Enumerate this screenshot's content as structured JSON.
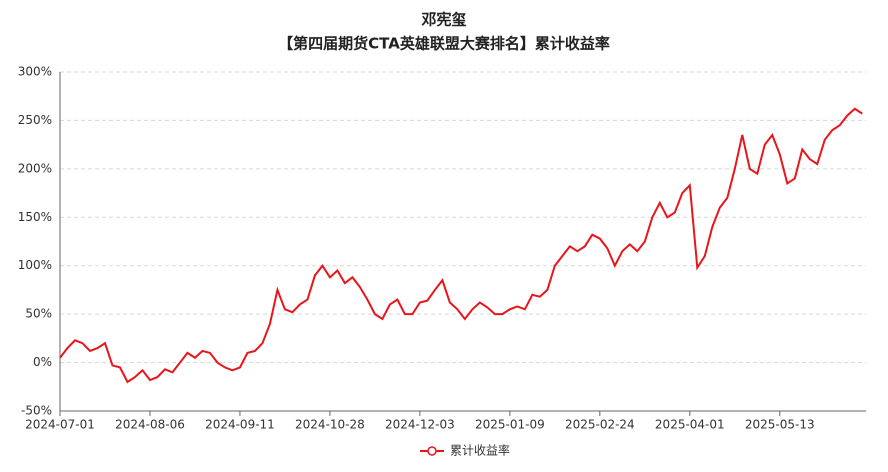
{
  "chart_data": {
    "type": "line",
    "title": "邓宪玺",
    "subtitle": "【第四届期货CTA英雄联盟大赛排名】累计收益率",
    "categories": [
      "2024-07-01",
      null,
      null,
      null,
      null,
      null,
      null,
      null,
      null,
      null,
      null,
      null,
      "2024-08-06",
      null,
      null,
      null,
      null,
      null,
      null,
      null,
      null,
      null,
      null,
      null,
      "2024-09-11",
      null,
      null,
      null,
      null,
      null,
      null,
      null,
      null,
      null,
      null,
      null,
      "2024-10-28",
      null,
      null,
      null,
      null,
      null,
      null,
      null,
      null,
      null,
      null,
      null,
      "2024-12-03",
      null,
      null,
      null,
      null,
      null,
      null,
      null,
      null,
      null,
      null,
      null,
      "2025-01-09",
      null,
      null,
      null,
      null,
      null,
      null,
      null,
      null,
      null,
      null,
      null,
      "2025-02-24",
      null,
      null,
      null,
      null,
      null,
      null,
      null,
      null,
      null,
      null,
      null,
      "2025-04-01",
      null,
      null,
      null,
      null,
      null,
      null,
      null,
      null,
      null,
      null,
      null,
      "2025-05-13",
      null,
      null,
      null,
      null,
      null,
      null,
      null,
      null,
      null,
      null,
      null
    ],
    "series": [
      {
        "name": "累计收益率",
        "color": "#e8151b",
        "values": [
          5,
          15,
          23,
          20,
          12,
          15,
          20,
          -3,
          -5,
          -20,
          -15,
          -8,
          -18,
          -15,
          -7,
          -10,
          0,
          10,
          5,
          12,
          10,
          0,
          -5,
          -8,
          -5,
          10,
          12,
          20,
          40,
          75,
          55,
          52,
          60,
          65,
          90,
          100,
          88,
          95,
          82,
          88,
          78,
          65,
          50,
          45,
          60,
          65,
          50,
          50,
          62,
          64,
          75,
          85,
          62,
          55,
          45,
          55,
          62,
          57,
          50,
          50,
          55,
          58,
          55,
          70,
          68,
          75,
          100,
          110,
          120,
          115,
          120,
          132,
          128,
          118,
          100,
          115,
          122,
          115,
          125,
          150,
          165,
          150,
          155,
          175,
          183,
          98,
          110,
          140,
          160,
          170,
          200,
          235,
          200,
          195,
          225,
          235,
          215,
          185,
          190,
          220,
          210,
          205,
          230,
          240,
          245,
          255,
          262,
          257
        ]
      }
    ],
    "ylim": [
      -50,
      300
    ],
    "yticks": [
      {
        "value": -50,
        "label": "-50%"
      },
      {
        "value": 0,
        "label": "0%"
      },
      {
        "value": 50,
        "label": "50%"
      },
      {
        "value": 100,
        "label": "100%"
      },
      {
        "value": 150,
        "label": "150%"
      },
      {
        "value": 200,
        "label": "200%"
      },
      {
        "value": 250,
        "label": "250%"
      },
      {
        "value": 300,
        "label": "300%"
      }
    ],
    "grid": true
  }
}
